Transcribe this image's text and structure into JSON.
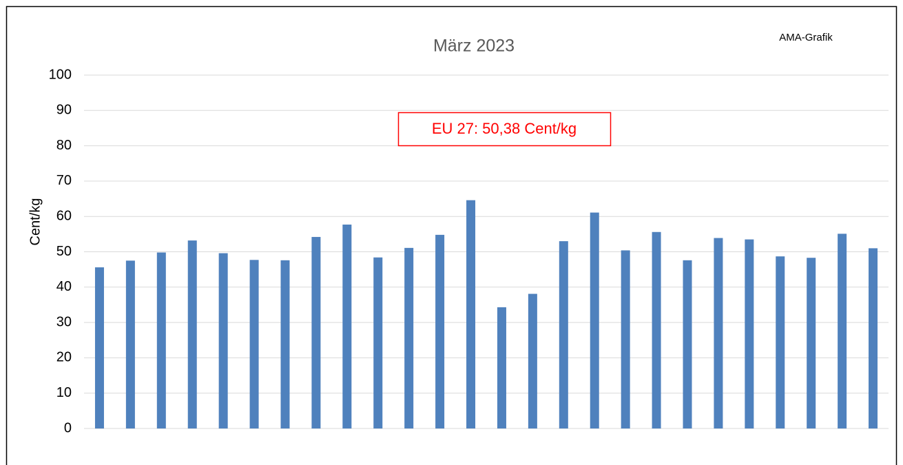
{
  "chart_data": {
    "type": "bar",
    "title": "März 2023",
    "source": "AMA-Grafik",
    "y_label": "Cent/kg",
    "annotation": "EU 27: 50,38 Cent/kg",
    "categories": [
      null,
      null,
      null,
      null,
      null,
      null,
      null,
      null,
      null,
      null,
      null,
      null,
      null,
      null,
      null,
      null,
      null,
      null,
      null,
      null,
      null,
      null,
      null,
      null,
      null,
      null
    ],
    "values": [
      45.6,
      47.5,
      49.8,
      53.2,
      49.6,
      47.7,
      47.6,
      54.2,
      57.7,
      48.4,
      51.1,
      54.8,
      64.6,
      34.3,
      38.1,
      53.0,
      61.1,
      50.4,
      55.6,
      47.6,
      53.9,
      53.5,
      48.7,
      48.3,
      55.1,
      51.0
    ],
    "color": "#4f81bd",
    "ylim": [
      0,
      100
    ],
    "yticks": [
      0,
      10,
      20,
      30,
      40,
      50,
      60,
      70,
      80,
      90,
      100
    ],
    "grid": true
  }
}
